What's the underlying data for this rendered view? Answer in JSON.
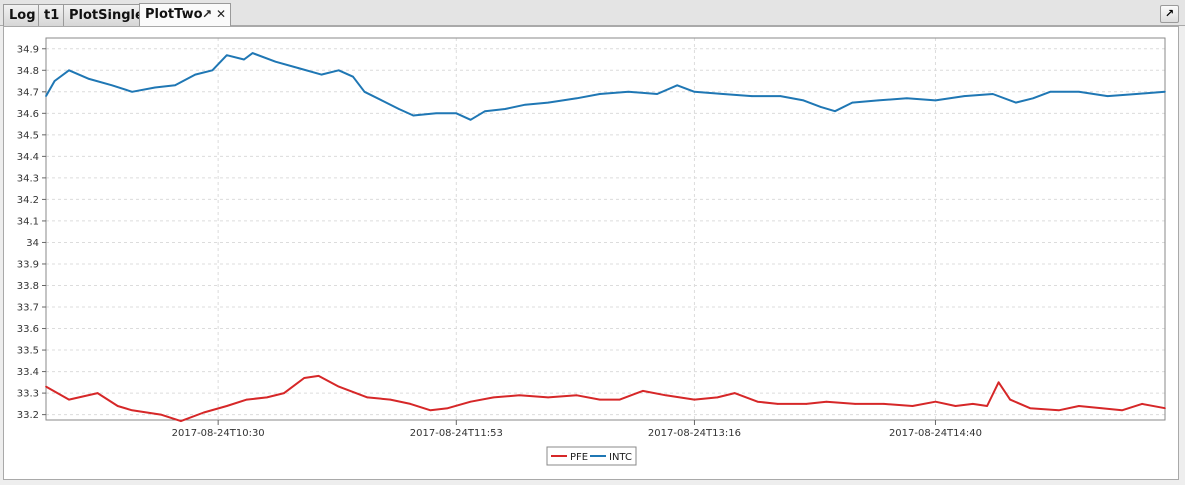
{
  "tabs": [
    {
      "label": "Log",
      "active": false
    },
    {
      "label": "t1",
      "active": false
    },
    {
      "label": "PlotSingle",
      "active": false
    },
    {
      "label": "PlotTwo",
      "active": true
    }
  ],
  "icons": {
    "popout": "popout-icon",
    "close": "close-icon",
    "maximize": "maximize-icon"
  },
  "chart_data": {
    "type": "line",
    "title": "",
    "xlabel": "",
    "ylabel": "",
    "grid": true,
    "legend_position": "bottom-center",
    "x_range": [
      "2017-08-24T09:30",
      "2017-08-24T16:00"
    ],
    "ylim": [
      33.175,
      34.95
    ],
    "x_ticks": [
      "2017-08-24T10:30",
      "2017-08-24T11:53",
      "2017-08-24T13:16",
      "2017-08-24T14:40"
    ],
    "y_ticks": [
      "33.2",
      "33.3",
      "33.4",
      "33.5",
      "33.6",
      "33.7",
      "33.8",
      "33.9",
      "34",
      "34.1",
      "34.2",
      "34.3",
      "34.4",
      "34.5",
      "34.6",
      "34.7",
      "34.8",
      "34.9"
    ],
    "series": [
      {
        "name": "PFE",
        "color": "#d62728",
        "points": [
          [
            "2017-08-24T09:30",
            33.33
          ],
          [
            "2017-08-24T09:38",
            33.27
          ],
          [
            "2017-08-24T09:48",
            33.3
          ],
          [
            "2017-08-24T09:55",
            33.24
          ],
          [
            "2017-08-24T10:00",
            33.22
          ],
          [
            "2017-08-24T10:10",
            33.2
          ],
          [
            "2017-08-24T10:17",
            33.17
          ],
          [
            "2017-08-24T10:25",
            33.21
          ],
          [
            "2017-08-24T10:33",
            33.24
          ],
          [
            "2017-08-24T10:40",
            33.27
          ],
          [
            "2017-08-24T10:47",
            33.28
          ],
          [
            "2017-08-24T10:53",
            33.3
          ],
          [
            "2017-08-24T11:00",
            33.37
          ],
          [
            "2017-08-24T11:05",
            33.38
          ],
          [
            "2017-08-24T11:12",
            33.33
          ],
          [
            "2017-08-24T11:22",
            33.28
          ],
          [
            "2017-08-24T11:30",
            33.27
          ],
          [
            "2017-08-24T11:37",
            33.25
          ],
          [
            "2017-08-24T11:44",
            33.22
          ],
          [
            "2017-08-24T11:50",
            33.23
          ],
          [
            "2017-08-24T11:58",
            33.26
          ],
          [
            "2017-08-24T12:06",
            33.28
          ],
          [
            "2017-08-24T12:15",
            33.29
          ],
          [
            "2017-08-24T12:25",
            33.28
          ],
          [
            "2017-08-24T12:35",
            33.29
          ],
          [
            "2017-08-24T12:43",
            33.27
          ],
          [
            "2017-08-24T12:50",
            33.27
          ],
          [
            "2017-08-24T12:58",
            33.31
          ],
          [
            "2017-08-24T13:06",
            33.29
          ],
          [
            "2017-08-24T13:16",
            33.27
          ],
          [
            "2017-08-24T13:24",
            33.28
          ],
          [
            "2017-08-24T13:30",
            33.3
          ],
          [
            "2017-08-24T13:38",
            33.26
          ],
          [
            "2017-08-24T13:45",
            33.25
          ],
          [
            "2017-08-24T13:55",
            33.25
          ],
          [
            "2017-08-24T14:02",
            33.26
          ],
          [
            "2017-08-24T14:12",
            33.25
          ],
          [
            "2017-08-24T14:22",
            33.25
          ],
          [
            "2017-08-24T14:32",
            33.24
          ],
          [
            "2017-08-24T14:40",
            33.26
          ],
          [
            "2017-08-24T14:47",
            33.24
          ],
          [
            "2017-08-24T14:53",
            33.25
          ],
          [
            "2017-08-24T14:58",
            33.24
          ],
          [
            "2017-08-24T15:02",
            33.35
          ],
          [
            "2017-08-24T15:06",
            33.27
          ],
          [
            "2017-08-24T15:13",
            33.23
          ],
          [
            "2017-08-24T15:23",
            33.22
          ],
          [
            "2017-08-24T15:30",
            33.24
          ],
          [
            "2017-08-24T15:38",
            33.23
          ],
          [
            "2017-08-24T15:45",
            33.22
          ],
          [
            "2017-08-24T15:52",
            33.25
          ],
          [
            "2017-08-24T16:00",
            33.23
          ]
        ]
      },
      {
        "name": "INTC",
        "color": "#1f77b4",
        "points": [
          [
            "2017-08-24T09:30",
            34.68
          ],
          [
            "2017-08-24T09:33",
            34.75
          ],
          [
            "2017-08-24T09:38",
            34.8
          ],
          [
            "2017-08-24T09:45",
            34.76
          ],
          [
            "2017-08-24T09:53",
            34.73
          ],
          [
            "2017-08-24T10:00",
            34.7
          ],
          [
            "2017-08-24T10:08",
            34.72
          ],
          [
            "2017-08-24T10:15",
            34.73
          ],
          [
            "2017-08-24T10:22",
            34.78
          ],
          [
            "2017-08-24T10:28",
            34.8
          ],
          [
            "2017-08-24T10:33",
            34.87
          ],
          [
            "2017-08-24T10:39",
            34.85
          ],
          [
            "2017-08-24T10:42",
            34.88
          ],
          [
            "2017-08-24T10:50",
            34.84
          ],
          [
            "2017-08-24T10:58",
            34.81
          ],
          [
            "2017-08-24T11:06",
            34.78
          ],
          [
            "2017-08-24T11:12",
            34.8
          ],
          [
            "2017-08-24T11:17",
            34.77
          ],
          [
            "2017-08-24T11:21",
            34.7
          ],
          [
            "2017-08-24T11:27",
            34.66
          ],
          [
            "2017-08-24T11:33",
            34.62
          ],
          [
            "2017-08-24T11:38",
            34.59
          ],
          [
            "2017-08-24T11:46",
            34.6
          ],
          [
            "2017-08-24T11:53",
            34.6
          ],
          [
            "2017-08-24T11:58",
            34.57
          ],
          [
            "2017-08-24T12:03",
            34.61
          ],
          [
            "2017-08-24T12:10",
            34.62
          ],
          [
            "2017-08-24T12:17",
            34.64
          ],
          [
            "2017-08-24T12:25",
            34.65
          ],
          [
            "2017-08-24T12:35",
            34.67
          ],
          [
            "2017-08-24T12:43",
            34.69
          ],
          [
            "2017-08-24T12:53",
            34.7
          ],
          [
            "2017-08-24T13:03",
            34.69
          ],
          [
            "2017-08-24T13:10",
            34.73
          ],
          [
            "2017-08-24T13:16",
            34.7
          ],
          [
            "2017-08-24T13:26",
            34.69
          ],
          [
            "2017-08-24T13:36",
            34.68
          ],
          [
            "2017-08-24T13:46",
            34.68
          ],
          [
            "2017-08-24T13:54",
            34.66
          ],
          [
            "2017-08-24T14:00",
            34.63
          ],
          [
            "2017-08-24T14:05",
            34.61
          ],
          [
            "2017-08-24T14:11",
            34.65
          ],
          [
            "2017-08-24T14:20",
            34.66
          ],
          [
            "2017-08-24T14:30",
            34.67
          ],
          [
            "2017-08-24T14:40",
            34.66
          ],
          [
            "2017-08-24T14:50",
            34.68
          ],
          [
            "2017-08-24T15:00",
            34.69
          ],
          [
            "2017-08-24T15:08",
            34.65
          ],
          [
            "2017-08-24T15:14",
            34.67
          ],
          [
            "2017-08-24T15:20",
            34.7
          ],
          [
            "2017-08-24T15:30",
            34.7
          ],
          [
            "2017-08-24T15:40",
            34.68
          ],
          [
            "2017-08-24T15:50",
            34.69
          ],
          [
            "2017-08-24T16:00",
            34.7
          ]
        ]
      }
    ]
  }
}
